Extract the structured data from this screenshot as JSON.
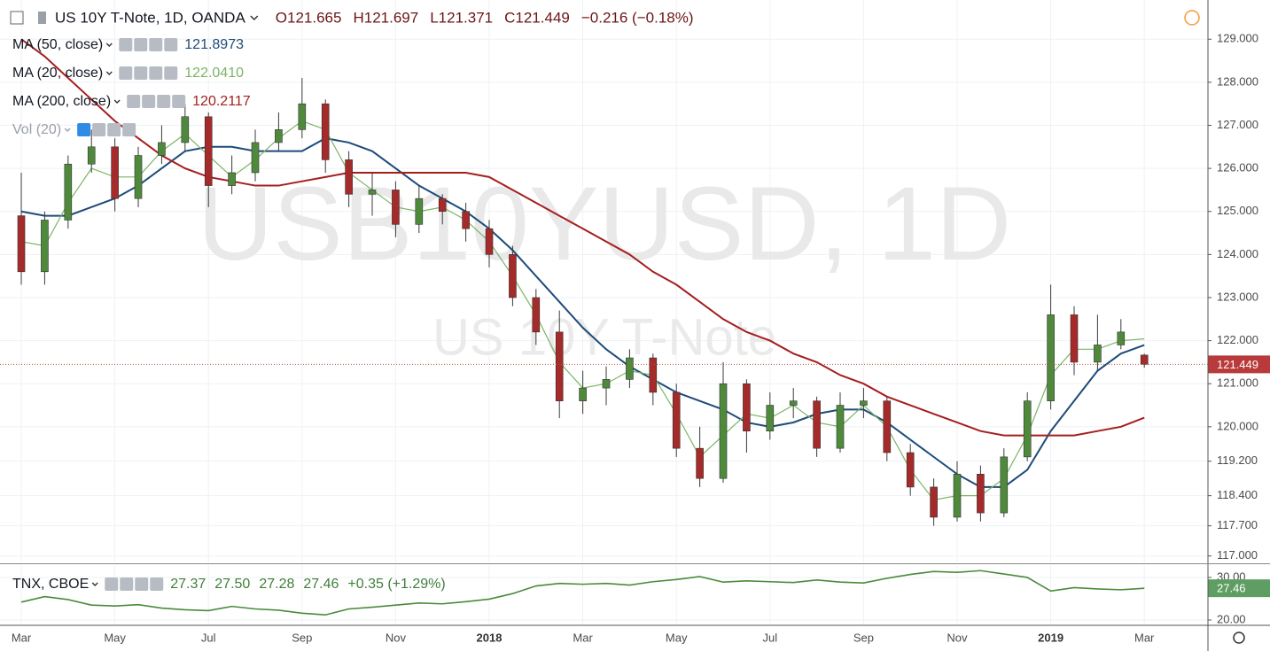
{
  "chart_data": [
    {
      "type": "candlestick",
      "title": "US 10Y T-Note, 1D, OANDA",
      "ohlc_labels": [
        "O121.665",
        "H121.697",
        "L121.371",
        "C121.449"
      ],
      "change": "−0.216 (−0.18%)",
      "watermark": "USB10YUSD, 1D",
      "watermark_subtitle": "US 10Y T-Note",
      "volume_label": "Vol (20)",
      "up_color": "#4f8a3c",
      "down_color": "#a52a2a",
      "x": [
        2,
        2.5,
        3,
        3.5,
        4,
        4.5,
        5,
        5.5,
        6,
        6.5,
        7,
        7.5,
        8,
        8.5,
        9,
        9.5,
        10,
        10.5,
        11,
        11.5,
        12,
        12.5,
        13,
        13.5,
        14,
        14.5,
        15,
        15.5,
        16,
        16.5,
        17,
        17.5,
        18,
        18.5,
        19,
        19.5,
        20,
        20.5,
        21,
        21.5,
        22,
        22.5,
        23,
        23.5,
        24,
        24.5,
        25,
        25.5,
        26
      ],
      "open": [
        124.9,
        123.6,
        124.8,
        126.1,
        126.5,
        125.3,
        126.3,
        126.6,
        127.2,
        125.6,
        125.9,
        126.6,
        126.9,
        127.5,
        126.2,
        125.4,
        125.5,
        124.7,
        125.3,
        125.0,
        124.6,
        124.0,
        123.0,
        122.2,
        120.6,
        120.9,
        121.1,
        121.6,
        120.8,
        119.5,
        118.8,
        121.0,
        119.9,
        120.5,
        120.6,
        119.5,
        120.5,
        120.6,
        119.4,
        118.6,
        117.9,
        118.9,
        118.0,
        119.3,
        120.6,
        122.6,
        121.5,
        121.9,
        121.665
      ],
      "high": [
        125.9,
        125.0,
        126.3,
        126.9,
        126.7,
        126.5,
        127.0,
        127.5,
        127.3,
        126.3,
        126.9,
        127.3,
        128.1,
        127.6,
        126.4,
        125.9,
        125.7,
        125.6,
        125.4,
        125.2,
        124.8,
        124.2,
        123.2,
        122.7,
        121.3,
        121.4,
        121.8,
        121.7,
        121.0,
        120.0,
        121.5,
        121.1,
        120.8,
        120.9,
        120.7,
        120.8,
        120.9,
        120.7,
        119.6,
        118.8,
        119.2,
        119.1,
        119.5,
        120.8,
        123.3,
        122.8,
        122.6,
        122.5,
        121.697
      ],
      "low": [
        123.3,
        123.3,
        124.6,
        125.9,
        125.0,
        125.1,
        126.1,
        126.4,
        125.1,
        125.4,
        125.7,
        126.4,
        126.7,
        125.9,
        125.1,
        124.9,
        124.4,
        124.5,
        124.7,
        124.3,
        123.7,
        122.8,
        121.9,
        120.2,
        120.3,
        120.5,
        120.9,
        120.5,
        119.3,
        118.6,
        118.7,
        119.4,
        119.7,
        120.2,
        119.3,
        119.4,
        120.2,
        119.2,
        118.4,
        117.7,
        117.8,
        117.8,
        117.9,
        119.2,
        120.4,
        121.2,
        121.3,
        121.8,
        121.371
      ],
      "close": [
        123.6,
        124.8,
        126.1,
        126.5,
        125.3,
        126.3,
        126.6,
        127.2,
        125.6,
        125.9,
        126.6,
        126.9,
        127.5,
        126.2,
        125.4,
        125.5,
        124.7,
        125.3,
        125.0,
        124.6,
        124.0,
        123.0,
        122.2,
        120.6,
        120.9,
        121.1,
        121.6,
        120.8,
        119.5,
        118.8,
        121.0,
        119.9,
        120.5,
        120.6,
        119.5,
        120.5,
        120.6,
        119.4,
        118.6,
        117.9,
        118.9,
        118.0,
        119.3,
        120.6,
        122.6,
        121.5,
        121.9,
        122.2,
        121.449
      ],
      "series": [
        {
          "name": "MA (50, close)",
          "color": "#1e4b7a",
          "legend_value": "121.8973",
          "values": [
            125.0,
            124.9,
            124.9,
            125.1,
            125.3,
            125.6,
            126.0,
            126.4,
            126.5,
            126.5,
            126.4,
            126.4,
            126.4,
            126.7,
            126.6,
            126.4,
            126.0,
            125.6,
            125.3,
            125.0,
            124.6,
            124.1,
            123.5,
            122.9,
            122.3,
            121.8,
            121.4,
            121.1,
            120.8,
            120.6,
            120.4,
            120.1,
            120.0,
            120.1,
            120.3,
            120.4,
            120.4,
            120.1,
            119.7,
            119.3,
            118.9,
            118.6,
            118.6,
            119.0,
            119.9,
            120.6,
            121.3,
            121.7,
            121.8973
          ]
        },
        {
          "name": "MA (20, close)",
          "color": "#7cb564",
          "legend_value": "122.0410",
          "values": [
            124.3,
            124.2,
            125.2,
            126.0,
            125.8,
            125.8,
            126.4,
            126.8,
            126.3,
            125.8,
            126.2,
            126.7,
            127.1,
            126.9,
            125.9,
            125.5,
            125.1,
            125.0,
            125.1,
            124.8,
            124.3,
            123.5,
            122.6,
            121.5,
            120.9,
            121.0,
            121.3,
            121.2,
            120.3,
            119.3,
            119.8,
            120.3,
            120.2,
            120.5,
            120.1,
            120.0,
            120.5,
            120.0,
            119.0,
            118.3,
            118.4,
            118.4,
            118.8,
            119.8,
            121.2,
            121.8,
            121.8,
            122.0,
            122.041
          ]
        },
        {
          "name": "MA (200, close)",
          "color": "#a51e1e",
          "legend_value": "120.2117",
          "values": [
            129.0,
            128.6,
            128.1,
            127.6,
            127.1,
            126.7,
            126.3,
            126.0,
            125.8,
            125.7,
            125.6,
            125.6,
            125.7,
            125.8,
            125.9,
            125.9,
            125.9,
            125.9,
            125.9,
            125.9,
            125.8,
            125.5,
            125.2,
            124.9,
            124.6,
            124.3,
            124.0,
            123.6,
            123.3,
            122.9,
            122.5,
            122.2,
            122.0,
            121.7,
            121.5,
            121.2,
            121.0,
            120.7,
            120.5,
            120.3,
            120.1,
            119.9,
            119.8,
            119.8,
            119.8,
            119.8,
            119.9,
            120.0,
            120.2117
          ]
        }
      ],
      "xlim": [
        1.545,
        27.36
      ],
      "xticks": [
        {
          "value": 2,
          "label": "Mar"
        },
        {
          "value": 4,
          "label": "May"
        },
        {
          "value": 6,
          "label": "Jul"
        },
        {
          "value": 8,
          "label": "Sep"
        },
        {
          "value": 10,
          "label": "Nov"
        },
        12,
        {
          "value": 14,
          "label": "Mar"
        },
        {
          "value": 16,
          "label": "May"
        },
        {
          "value": 18,
          "label": "Jul"
        },
        {
          "value": 20,
          "label": "Sep"
        },
        {
          "value": 22,
          "label": "Nov"
        },
        24,
        {
          "value": 26,
          "label": "Mar"
        }
      ],
      "year_ticks": [
        {
          "value": 12,
          "label": "2018"
        },
        {
          "value": 24,
          "label": "2019"
        }
      ],
      "ylim": [
        116.85,
        129.91
      ],
      "yticks": [
        {
          "value": 129,
          "label": "129.000"
        },
        {
          "value": 128,
          "label": "128.000"
        },
        {
          "value": 127,
          "label": "127.000"
        },
        {
          "value": 126,
          "label": "126.000"
        },
        {
          "value": 125,
          "label": "125.000"
        },
        {
          "value": 124,
          "label": "124.000"
        },
        {
          "value": 123,
          "label": "123.000"
        },
        {
          "value": 122,
          "label": "122.000"
        },
        {
          "value": 121,
          "label": "121.000"
        },
        {
          "value": 120,
          "label": "120.000"
        },
        {
          "value": 119.2,
          "label": "119.200"
        },
        {
          "value": 118.4,
          "label": "118.400"
        },
        {
          "value": 117.7,
          "label": "117.700"
        },
        {
          "value": 117,
          "label": "117.000"
        }
      ],
      "grid": true
    },
    {
      "type": "line",
      "title": "TNX, CBOE",
      "quote_labels": [
        "27.37",
        "27.50",
        "27.28",
        "27.46"
      ],
      "change": "+0.35 (+1.29%)",
      "color": "#4a8a3a",
      "values": [
        24.2,
        25.5,
        24.8,
        23.5,
        23.3,
        23.6,
        22.8,
        22.4,
        22.2,
        23.2,
        22.6,
        22.3,
        21.6,
        21.2,
        22.6,
        23.0,
        23.5,
        24.0,
        23.8,
        24.3,
        24.9,
        26.2,
        28.0,
        28.6,
        28.4,
        28.6,
        28.2,
        29.0,
        29.5,
        30.2,
        28.9,
        29.2,
        29.0,
        28.8,
        29.4,
        28.9,
        28.7,
        29.8,
        30.7,
        31.4,
        31.2,
        31.6,
        30.8,
        30.0,
        26.8,
        27.6,
        27.3,
        27.1,
        27.46
      ],
      "ylim": [
        18.96,
        32.9
      ],
      "yticks": [
        {
          "value": 30,
          "label": "30.00"
        },
        {
          "value": 20,
          "label": "20.00"
        }
      ],
      "grid": true
    }
  ]
}
